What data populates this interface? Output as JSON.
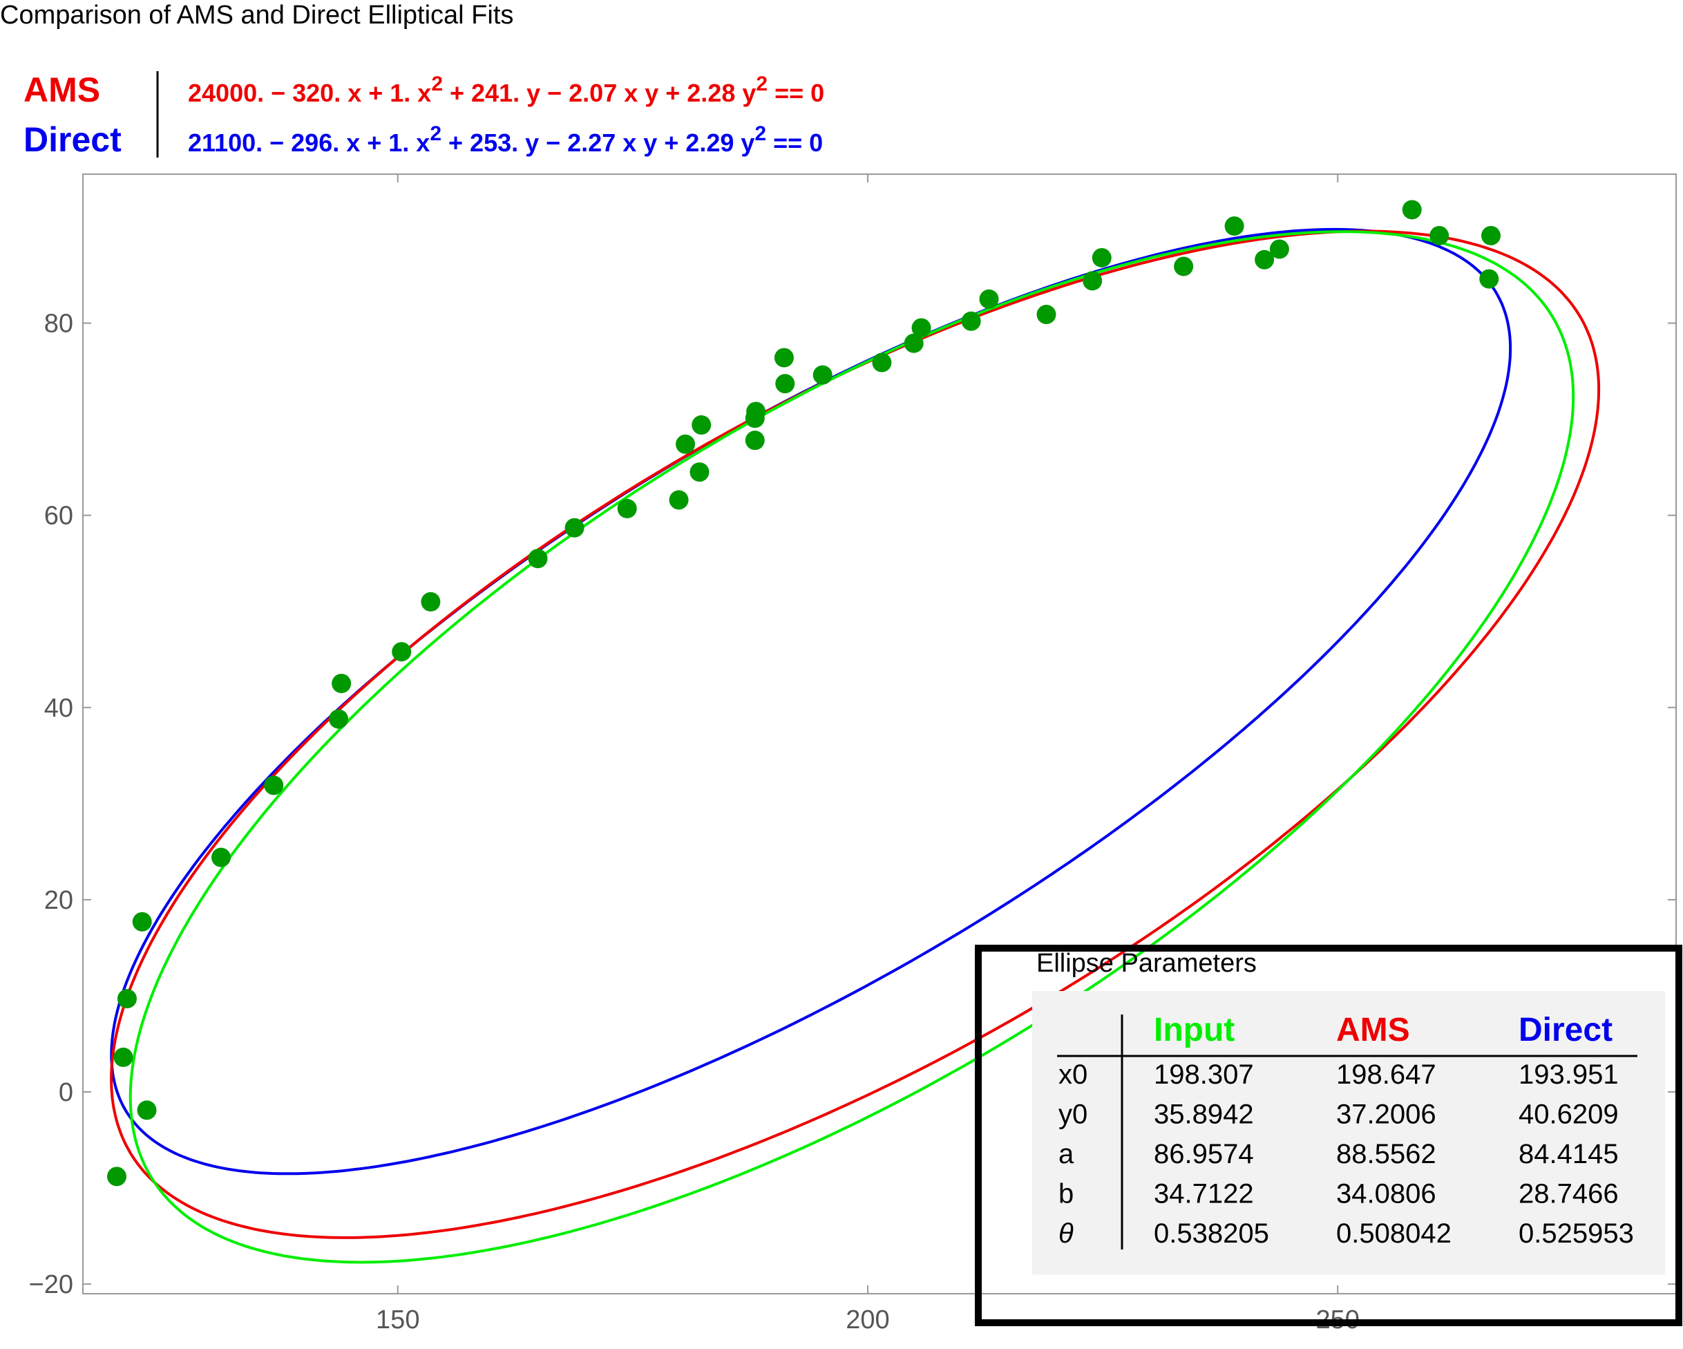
{
  "chart_data": {
    "type": "scatter",
    "title": "Comparison of AMS and Direct Elliptical Fits",
    "xlabel": "",
    "ylabel": "",
    "xlim": [
      116.5,
      286
    ],
    "ylim": [
      -21,
      95.5
    ],
    "x_ticks": [
      150,
      200,
      250
    ],
    "y_ticks": [
      -20,
      0,
      20,
      40,
      60,
      80
    ],
    "x_tick_labels": [
      "150",
      "200",
      "250"
    ],
    "y_tick_labels": [
      "−20",
      "0",
      "20",
      "40",
      "60",
      "80"
    ],
    "grid": false,
    "colors": {
      "points": "#009900",
      "input": "#00ee00",
      "ams": "#ee0000",
      "direct": "#0000ee",
      "frame": "#999999",
      "table_bg": "#f2f2f2"
    },
    "points": {
      "x": [
        120.1,
        120.8,
        121.2,
        122.8,
        123.3,
        131.2,
        136.8,
        143.7,
        144.0,
        150.4,
        153.5,
        164.9,
        168.8,
        174.4,
        179.9,
        180.6,
        182.1,
        182.3,
        188.0,
        188.0,
        188.1,
        191.1,
        191.2,
        195.2,
        201.5,
        204.9,
        205.7,
        211.0,
        212.9,
        219.0,
        223.9,
        224.9,
        233.6,
        239.0,
        242.2,
        243.8,
        257.9,
        260.8,
        266.1,
        266.3
      ],
      "y": [
        -8.8,
        3.6,
        9.7,
        17.7,
        -1.9,
        24.4,
        31.9,
        38.8,
        42.5,
        45.8,
        51.0,
        55.5,
        58.7,
        60.7,
        61.6,
        67.4,
        64.5,
        69.4,
        67.8,
        70.1,
        70.8,
        76.4,
        73.7,
        74.6,
        75.9,
        77.9,
        79.5,
        80.2,
        82.5,
        80.9,
        84.4,
        86.8,
        85.9,
        90.1,
        86.6,
        87.7,
        91.8,
        89.1,
        84.6,
        89.1
      ]
    },
    "series": [
      {
        "name": "Input",
        "type": "ellipse",
        "x0": 198.307,
        "y0": 35.8942,
        "a": 86.9574,
        "b": 34.7122,
        "theta": 0.538205
      },
      {
        "name": "AMS",
        "type": "ellipse",
        "x0": 198.647,
        "y0": 37.2006,
        "a": 88.5562,
        "b": 34.0806,
        "theta": 0.508042
      },
      {
        "name": "Direct",
        "type": "ellipse",
        "x0": 193.951,
        "y0": 40.6209,
        "a": 84.4145,
        "b": 28.7466,
        "theta": 0.525953
      }
    ],
    "legend": {
      "placement": "top-left",
      "entries": [
        {
          "name": "AMS",
          "equation": [
            "24000. − 320. x + 1. x",
            "2",
            " + 241. y − 2.07 x y + 2.28 y",
            "2",
            " == 0"
          ]
        },
        {
          "name": "Direct",
          "equation": [
            "21100. − 296. x + 1. x",
            "2",
            " + 253. y − 2.27 x y + 2.29 y",
            "2",
            " == 0"
          ]
        }
      ]
    },
    "table": {
      "title": "Ellipse Parameters",
      "placement": "bottom-right",
      "columns": [
        "Input",
        "AMS",
        "Direct"
      ],
      "rows": [
        {
          "label": "x0",
          "values": [
            "198.307",
            "198.647",
            "193.951"
          ]
        },
        {
          "label": "y0",
          "values": [
            "35.8942",
            "37.2006",
            "40.6209"
          ]
        },
        {
          "label": "a",
          "values": [
            "86.9574",
            "88.5562",
            "84.4145"
          ]
        },
        {
          "label": "b",
          "values": [
            "34.7122",
            "34.0806",
            "28.7466"
          ]
        },
        {
          "label": "θ",
          "values": [
            "0.538205",
            "0.508042",
            "0.525953"
          ]
        }
      ]
    }
  }
}
